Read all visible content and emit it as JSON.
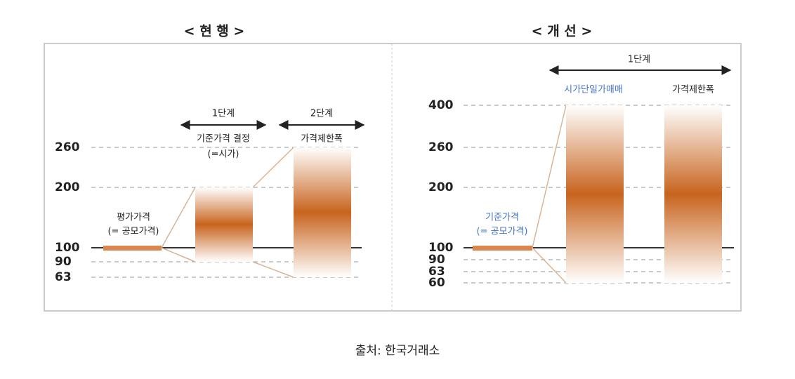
{
  "current": {
    "title": "< 현 행 >",
    "levels": [
      260,
      200,
      100,
      90,
      63
    ],
    "base_label": [
      "평가가격",
      "(= 공모가격)"
    ],
    "stage1": {
      "label": "1단계",
      "caption": [
        "기준가격 결정",
        "(=시가)"
      ]
    },
    "stage2": {
      "label": "2단계",
      "caption": "가격제한폭"
    }
  },
  "improved": {
    "title": "< 개 선 >",
    "levels": [
      400,
      260,
      200,
      100,
      90,
      63,
      60
    ],
    "base_label": [
      "기준가격",
      "(= 공모가격)"
    ],
    "stage1": {
      "label": "1단계",
      "captions": [
        "시가단일가매매",
        "가격제한폭"
      ]
    }
  },
  "source": "출처: 한국거래소"
}
